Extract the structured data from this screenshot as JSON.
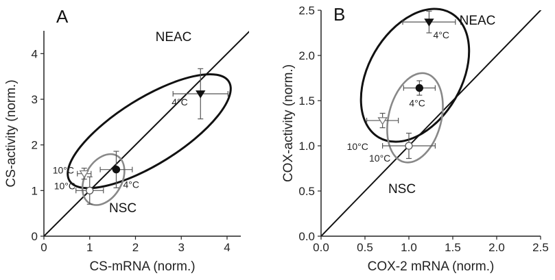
{
  "chart_data": [
    {
      "type": "scatter",
      "panel": "A",
      "xlabel": "CS-mRNA (norm.)",
      "ylabel": "CS-activity (norm.)",
      "xlim": [
        0,
        4.3
      ],
      "ylim": [
        0,
        4.5
      ],
      "xticks": [
        "0",
        "1",
        "2",
        "3",
        "4"
      ],
      "yticks": [
        "0",
        "1",
        "2",
        "3",
        "4"
      ],
      "grid": false,
      "identity_line": true,
      "groups": [
        {
          "label": "NEAC",
          "color": "#111111",
          "ellipse": {
            "cx": 2.3,
            "cy": 2.3,
            "rx": 2.05,
            "ry": 0.72,
            "angle_deg": 32
          }
        },
        {
          "label": "NSC",
          "color": "#888888",
          "ellipse": {
            "cx": 1.3,
            "cy": 1.24,
            "rx": 0.6,
            "ry": 0.4,
            "angle_deg": 60
          }
        }
      ],
      "points": [
        {
          "label": "4°C",
          "group": "NEAC",
          "marker": "triangle-down-filled",
          "x": 3.42,
          "y": 3.12,
          "xerr": 0.6,
          "yerr": 0.55
        },
        {
          "label": "10°C",
          "group": "NEAC",
          "marker": "triangle-down-open",
          "x": 0.88,
          "y": 1.37,
          "xerr": 0.15,
          "yerr": 0.12
        },
        {
          "label": "4°C",
          "group": "NSC",
          "marker": "circle-filled",
          "x": 1.58,
          "y": 1.46,
          "xerr": 0.35,
          "yerr": 0.4
        },
        {
          "label": "10°C",
          "group": "NSC",
          "marker": "circle-open",
          "x": 1.0,
          "y": 1.0,
          "xerr": 0.3,
          "yerr": 0.3
        }
      ]
    },
    {
      "type": "scatter",
      "panel": "B",
      "xlabel": "COX-2 mRNA (norm.)",
      "ylabel": "COX-activity (norm.)",
      "xlim": [
        0,
        2.5
      ],
      "ylim": [
        0,
        2.5
      ],
      "xticks": [
        "0.0",
        "0.5",
        "1.0",
        "1.5",
        "2.0",
        "2.5"
      ],
      "yticks": [
        "0.0",
        "0.5",
        "1.0",
        "1.5",
        "2.0",
        "2.5"
      ],
      "grid": false,
      "identity_line": true,
      "groups": [
        {
          "label": "NEAC",
          "color": "#111111",
          "ellipse": {
            "cx": 1.07,
            "cy": 1.78,
            "rx": 0.82,
            "ry": 0.53,
            "angle_deg": 60
          }
        },
        {
          "label": "NSC",
          "color": "#888888",
          "ellipse": {
            "cx": 1.07,
            "cy": 1.31,
            "rx": 0.52,
            "ry": 0.3,
            "angle_deg": 76
          }
        }
      ],
      "points": [
        {
          "label": "4°C",
          "group": "NEAC",
          "marker": "triangle-down-filled",
          "x": 1.23,
          "y": 2.37,
          "xerr": 0.3,
          "yerr": 0.12
        },
        {
          "label": "10°C",
          "group": "NEAC",
          "marker": "triangle-down-open",
          "x": 0.7,
          "y": 1.28,
          "xerr": 0.18,
          "yerr": 0.08
        },
        {
          "label": "4°C",
          "group": "NSC",
          "marker": "circle-filled",
          "x": 1.12,
          "y": 1.64,
          "xerr": 0.18,
          "yerr": 0.08
        },
        {
          "label": "10°C",
          "group": "NSC",
          "marker": "circle-open",
          "x": 1.0,
          "y": 1.0,
          "xerr": 0.3,
          "yerr": 0.14
        }
      ]
    }
  ]
}
